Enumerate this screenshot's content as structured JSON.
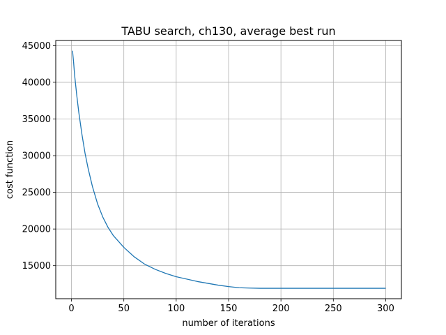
{
  "chart_data": {
    "type": "line",
    "title": "TABU search, ch130, average best run",
    "xlabel": "number of iterations",
    "ylabel": "cost function",
    "xlim": [
      -15,
      315
    ],
    "ylim": [
      10500,
      45700
    ],
    "xticks": [
      0,
      50,
      100,
      150,
      200,
      250,
      300
    ],
    "yticks": [
      15000,
      20000,
      25000,
      30000,
      35000,
      40000,
      45000
    ],
    "grid": true,
    "series": [
      {
        "color": "#1f77b4",
        "x": [
          1,
          2,
          3,
          5,
          7,
          10,
          13,
          16,
          20,
          25,
          30,
          35,
          40,
          50,
          60,
          70,
          80,
          90,
          100,
          120,
          140,
          150,
          160,
          170,
          180,
          200,
          250,
          300
        ],
        "y": [
          44300,
          42800,
          41000,
          38300,
          35900,
          32900,
          30300,
          28200,
          25800,
          23400,
          21600,
          20200,
          19100,
          17500,
          16200,
          15200,
          14500,
          13950,
          13500,
          12850,
          12350,
          12150,
          12000,
          11950,
          11920,
          11920,
          11920,
          11920
        ]
      }
    ]
  }
}
